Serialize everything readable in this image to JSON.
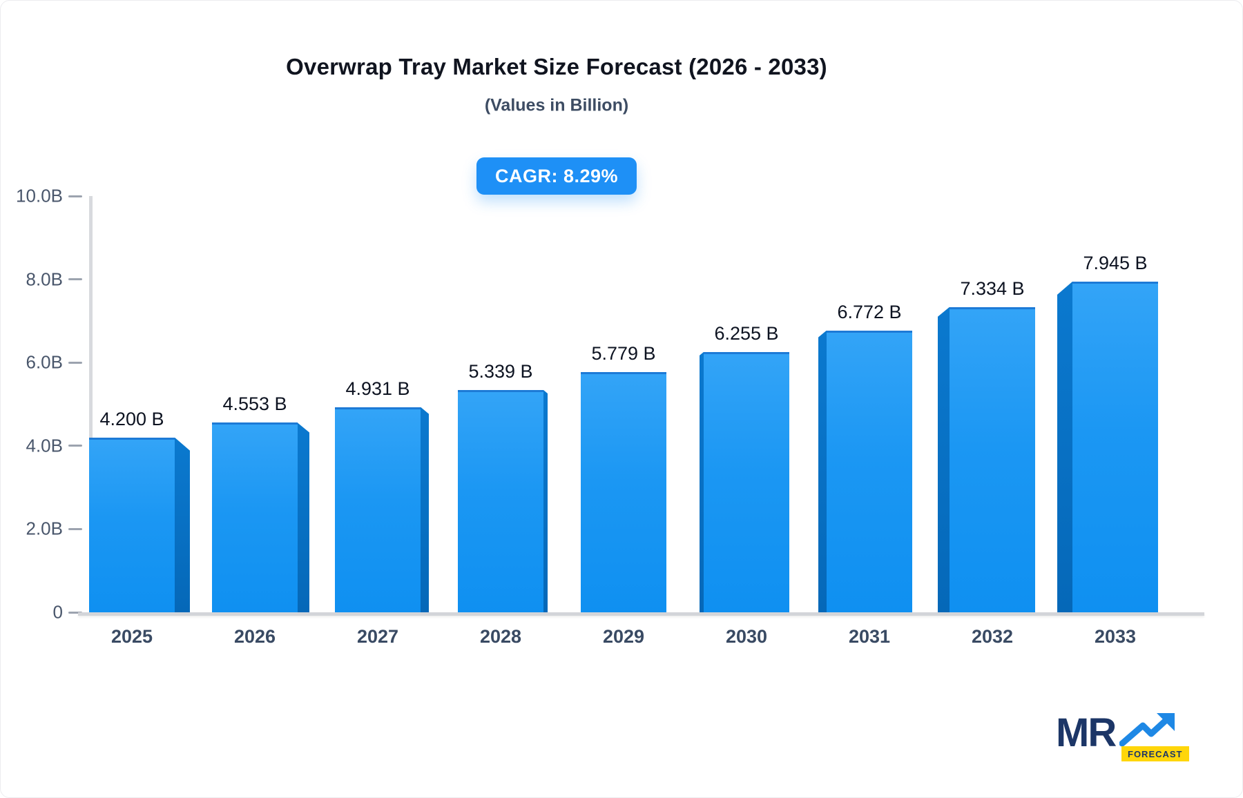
{
  "title": "Overwrap Tray Market Size Forecast (2026 - 2033)",
  "subtitle": "(Values in Billion)",
  "badge": {
    "label": "CAGR: 8.29%"
  },
  "chart_data": {
    "type": "bar",
    "title": "Overwrap Tray Market Size Forecast (2026 - 2033)",
    "subtitle": "(Values in Billion)",
    "xlabel": "",
    "ylabel": "Values in Billion",
    "categories": [
      "2025",
      "2026",
      "2027",
      "2028",
      "2029",
      "2030",
      "2031",
      "2032",
      "2033"
    ],
    "values": [
      4.2,
      4.553,
      4.931,
      5.339,
      5.779,
      6.255,
      6.772,
      7.334,
      7.945
    ],
    "value_labels": [
      "4.200 B",
      "4.553 B",
      "4.931 B",
      "5.339 B",
      "5.779 B",
      "6.255 B",
      "6.772 B",
      "7.334 B",
      "7.945 B"
    ],
    "ytick_labels": [
      "10.0B",
      "8.0B",
      "6.0B",
      "4.0B",
      "2.0B",
      "0"
    ],
    "ytick_values": [
      10,
      8,
      6,
      4,
      2,
      0
    ],
    "ylim": [
      0,
      10
    ],
    "grid": false,
    "legend": "none",
    "cagr": "8.29%",
    "bar_face_color": "#1e96f2",
    "bar_side_color": "#0770c2",
    "style": "3d-perspective-columns"
  },
  "logo": {
    "text": "MR",
    "sub": "FORECAST"
  },
  "colors": {
    "badge_bg": "#1e90f6",
    "badge_text": "#ffffff",
    "axis_line": "#d8dade",
    "tick_text": "#49566b",
    "year_text": "#394a63",
    "value_text": "#0d1321",
    "title_text": "#10141f",
    "logo_navy": "#1c3667",
    "logo_yellow": "#ffd60a",
    "logo_arrow_blue": "#1e88e5"
  }
}
